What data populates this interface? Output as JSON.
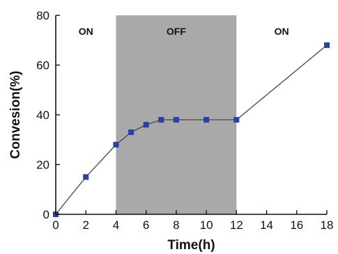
{
  "chart_data": {
    "type": "line",
    "title": "",
    "xlabel": "Time(h)",
    "ylabel": "Convesion(%)",
    "xlim": [
      0,
      18
    ],
    "ylim": [
      0,
      80
    ],
    "xticks": [
      0,
      2,
      4,
      6,
      8,
      10,
      12,
      14,
      16,
      18
    ],
    "yticks": [
      0,
      20,
      40,
      60,
      80
    ],
    "grid": false,
    "legend": "none",
    "regions": [
      {
        "label": "ON",
        "x_start": 0,
        "x_end": 4,
        "shaded": false
      },
      {
        "label": "OFF",
        "x_start": 4,
        "x_end": 12,
        "shaded": true,
        "color": "#a9a9a9"
      },
      {
        "label": "ON",
        "x_start": 12,
        "x_end": 18,
        "shaded": false
      }
    ],
    "series": [
      {
        "marker": "square",
        "color": "#2b3fa8",
        "line_color": "#444444",
        "x": [
          0,
          2,
          4,
          5,
          6,
          7,
          8,
          10,
          12,
          18
        ],
        "y": [
          0,
          15,
          28,
          33,
          36,
          38,
          38,
          38,
          38,
          68
        ]
      }
    ]
  }
}
